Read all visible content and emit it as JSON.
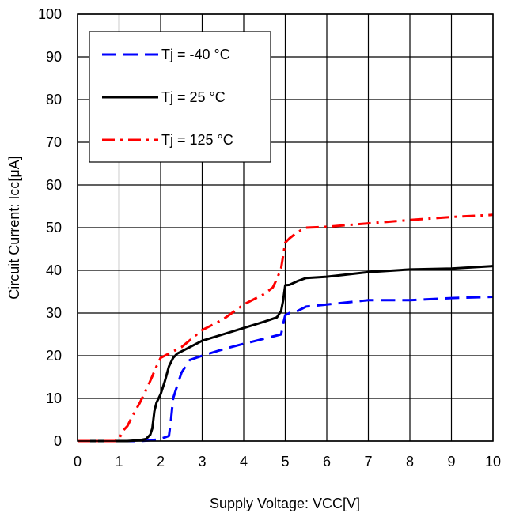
{
  "chart_data": {
    "type": "line",
    "title": "",
    "xlabel": "Supply Voltage: VCC[V]",
    "ylabel": "Circuit Current: Icc[μA]",
    "xlim": [
      0,
      10
    ],
    "ylim": [
      0,
      100
    ],
    "xticks": [
      "0",
      "1",
      "2",
      "3",
      "4",
      "5",
      "6",
      "7",
      "8",
      "9",
      "10"
    ],
    "yticks": [
      "0",
      "10",
      "20",
      "30",
      "40",
      "50",
      "60",
      "70",
      "80",
      "90",
      "100"
    ],
    "grid": true,
    "legend_position": "top-left",
    "series": [
      {
        "name": "Tj = -40 °C",
        "color": "#0000ff",
        "dash": "dashed",
        "x": [
          0,
          1.5,
          1.8,
          2.0,
          2.2,
          2.25,
          2.3,
          2.4,
          2.5,
          2.7,
          3.0,
          3.5,
          4.0,
          4.5,
          4.9,
          4.95,
          5.0,
          5.1,
          5.3,
          5.5,
          6.0,
          7.0,
          8.0,
          9.0,
          10.0
        ],
        "y": [
          0,
          0,
          0.2,
          0.5,
          1.2,
          5,
          10,
          13,
          16,
          19,
          20,
          21.5,
          22.8,
          24,
          25,
          27.5,
          29.5,
          30,
          30.5,
          31.5,
          32,
          33,
          33,
          33.5,
          33.8
        ]
      },
      {
        "name": "Tj = 25 °C",
        "color": "#000000",
        "dash": "solid",
        "x": [
          0,
          1.2,
          1.5,
          1.65,
          1.75,
          1.8,
          1.85,
          1.9,
          2.0,
          2.1,
          2.2,
          2.3,
          2.4,
          2.6,
          3.0,
          3.5,
          4.0,
          4.5,
          4.8,
          4.9,
          4.95,
          5.0,
          5.1,
          5.3,
          5.5,
          6.0,
          7.0,
          8.0,
          9.0,
          10.0
        ],
        "y": [
          0,
          0,
          0.2,
          0.5,
          1.5,
          3,
          7,
          9,
          11,
          14,
          17.5,
          19.5,
          20.5,
          21.5,
          23.5,
          25,
          26.5,
          28,
          29,
          30.5,
          33,
          36.5,
          36.6,
          37.5,
          38.2,
          38.5,
          39.6,
          40.2,
          40.4,
          41
        ]
      },
      {
        "name": "Tj = 125 °C",
        "color": "#ff0000",
        "dash": "dashdot",
        "x": [
          0,
          0.5,
          0.9,
          1.0,
          1.1,
          1.2,
          1.3,
          1.5,
          1.7,
          1.9,
          2.0,
          2.5,
          3.0,
          3.5,
          4.0,
          4.5,
          4.7,
          4.8,
          4.9,
          5.0,
          5.1,
          5.3,
          5.5,
          6.0,
          7.0,
          8.0,
          9.0,
          10.0
        ],
        "y": [
          0,
          0,
          0,
          0.5,
          2.5,
          3.5,
          5.5,
          9,
          13,
          17.5,
          19.5,
          22,
          26,
          28.5,
          32,
          34.5,
          36,
          38,
          40.5,
          46.5,
          47.5,
          49,
          50,
          50.2,
          51,
          51.8,
          52.5,
          53
        ]
      }
    ]
  }
}
